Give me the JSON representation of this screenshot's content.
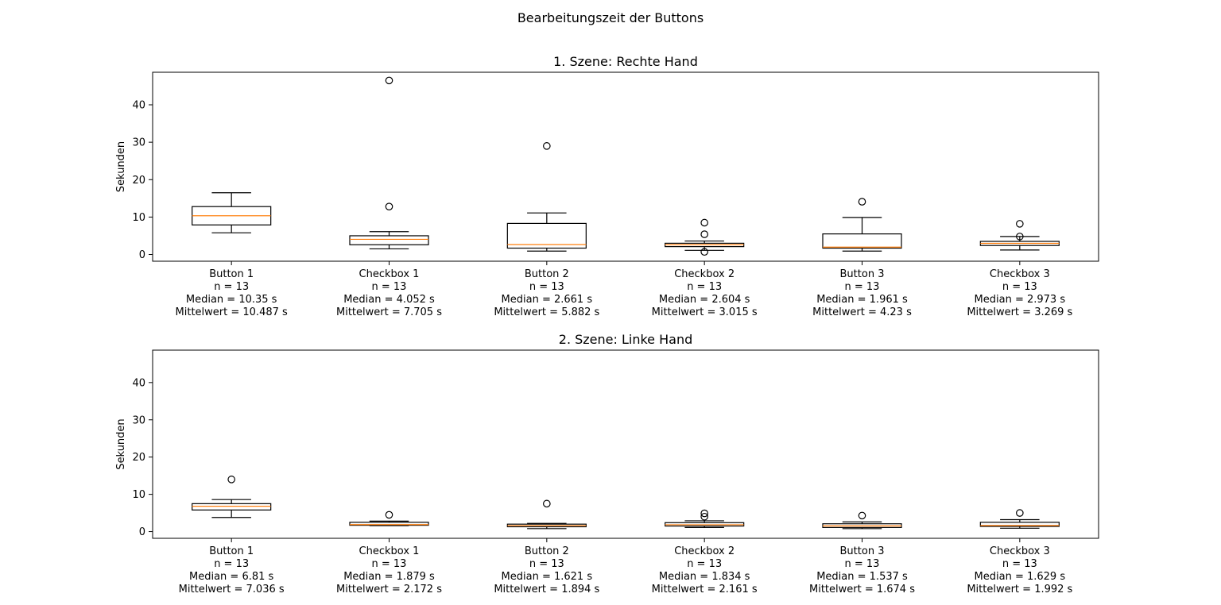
{
  "figure": {
    "suptitle": "Bearbeitungszeit der Buttons"
  },
  "chart_data": [
    {
      "type": "boxplot",
      "title": "1. Szene: Rechte Hand",
      "xlabel": "",
      "ylabel": "Sekunden",
      "ylim": [
        -1.8,
        48.7
      ],
      "yticks": [
        0,
        10,
        20,
        30,
        40
      ],
      "grid": false,
      "categories": [
        {
          "name": "Button 1",
          "n": "n = 13",
          "median_label": "Median = 10.35 s",
          "mean_label": "Mittelwert = 10.487 s"
        },
        {
          "name": "Checkbox 1",
          "n": "n = 13",
          "median_label": "Median = 4.052 s",
          "mean_label": "Mittelwert = 7.705 s"
        },
        {
          "name": "Button 2",
          "n": "n = 13",
          "median_label": "Median = 2.661 s",
          "mean_label": "Mittelwert = 5.882 s"
        },
        {
          "name": "Checkbox 2",
          "n": "n = 13",
          "median_label": "Median = 2.604 s",
          "mean_label": "Mittelwert = 3.015 s"
        },
        {
          "name": "Button 3",
          "n": "n = 13",
          "median_label": "Median = 1.961 s",
          "mean_label": "Mittelwert = 4.23 s"
        },
        {
          "name": "Checkbox 3",
          "n": "n = 13",
          "median_label": "Median = 2.973 s",
          "mean_label": "Mittelwert = 3.269 s"
        }
      ],
      "boxes": [
        {
          "whislo": 5.8,
          "q1": 7.9,
          "med": 10.35,
          "q3": 12.8,
          "whishi": 16.5,
          "fliers": []
        },
        {
          "whislo": 1.5,
          "q1": 2.6,
          "med": 4.052,
          "q3": 5.0,
          "whishi": 6.1,
          "fliers": [
            12.8,
            46.5
          ]
        },
        {
          "whislo": 0.9,
          "q1": 1.7,
          "med": 2.661,
          "q3": 8.3,
          "whishi": 11.1,
          "fliers": [
            29.0
          ]
        },
        {
          "whislo": 1.1,
          "q1": 2.1,
          "med": 2.604,
          "q3": 3.0,
          "whishi": 3.6,
          "fliers": [
            0.7,
            5.4,
            8.5
          ]
        },
        {
          "whislo": 0.9,
          "q1": 1.7,
          "med": 1.961,
          "q3": 5.5,
          "whishi": 9.9,
          "fliers": [
            14.1
          ]
        },
        {
          "whislo": 1.2,
          "q1": 2.4,
          "med": 2.973,
          "q3": 3.5,
          "whishi": 4.8,
          "fliers": [
            4.8,
            8.2
          ]
        }
      ]
    },
    {
      "type": "boxplot",
      "title": "2. Szene: Linke Hand",
      "xlabel": "",
      "ylabel": "Sekunden",
      "ylim": [
        -1.8,
        48.7
      ],
      "yticks": [
        0,
        10,
        20,
        30,
        40
      ],
      "grid": false,
      "categories": [
        {
          "name": "Button 1",
          "n": "n = 13",
          "median_label": "Median = 6.81 s",
          "mean_label": "Mittelwert = 7.036 s"
        },
        {
          "name": "Checkbox 1",
          "n": "n = 13",
          "median_label": "Median = 1.879 s",
          "mean_label": "Mittelwert = 2.172 s"
        },
        {
          "name": "Button 2",
          "n": "n = 13",
          "median_label": "Median = 1.621 s",
          "mean_label": "Mittelwert = 1.894 s"
        },
        {
          "name": "Checkbox 2",
          "n": "n = 13",
          "median_label": "Median = 1.834 s",
          "mean_label": "Mittelwert = 2.161 s"
        },
        {
          "name": "Button 3",
          "n": "n = 13",
          "median_label": "Median = 1.537 s",
          "mean_label": "Mittelwert = 1.674 s"
        },
        {
          "name": "Checkbox 3",
          "n": "n = 13",
          "median_label": "Median = 1.629 s",
          "mean_label": "Mittelwert = 1.992 s"
        }
      ],
      "boxes": [
        {
          "whislo": 3.8,
          "q1": 5.8,
          "med": 6.81,
          "q3": 7.5,
          "whishi": 8.6,
          "fliers": [
            14.0
          ]
        },
        {
          "whislo": 1.6,
          "q1": 1.7,
          "med": 1.879,
          "q3": 2.5,
          "whishi": 2.8,
          "fliers": [
            4.5
          ]
        },
        {
          "whislo": 0.8,
          "q1": 1.3,
          "med": 1.621,
          "q3": 2.0,
          "whishi": 2.2,
          "fliers": [
            7.5
          ]
        },
        {
          "whislo": 1.1,
          "q1": 1.5,
          "med": 1.834,
          "q3": 2.4,
          "whishi": 2.9,
          "fliers": [
            4.0,
            4.9
          ]
        },
        {
          "whislo": 0.8,
          "q1": 1.1,
          "med": 1.537,
          "q3": 2.1,
          "whishi": 2.6,
          "fliers": [
            4.3
          ]
        },
        {
          "whislo": 0.9,
          "q1": 1.4,
          "med": 1.629,
          "q3": 2.5,
          "whishi": 3.2,
          "fliers": [
            5.0
          ]
        }
      ]
    }
  ]
}
